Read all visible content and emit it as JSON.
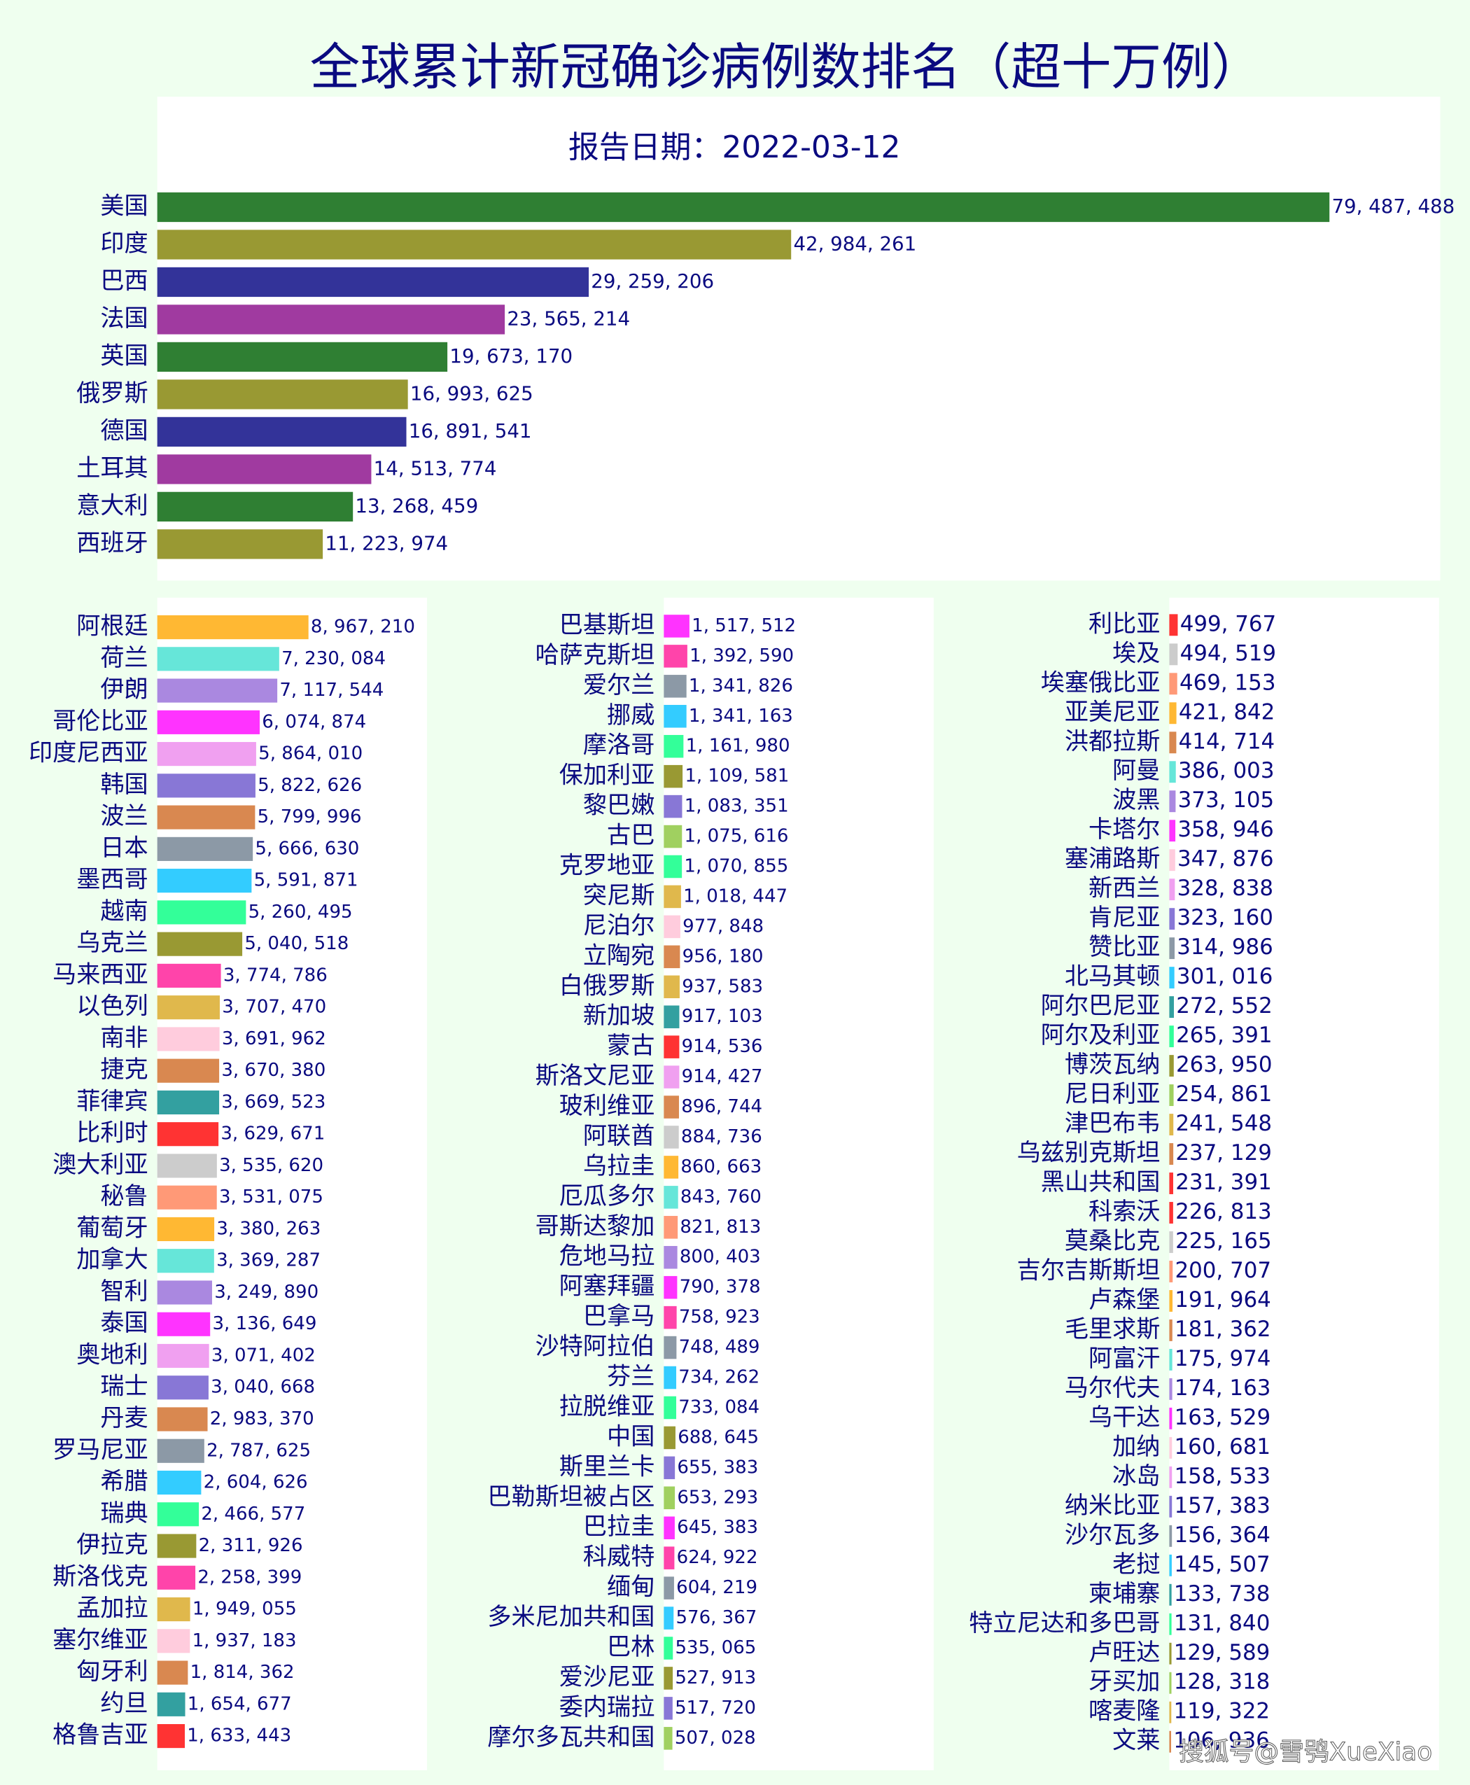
{
  "chart_data": [
    {
      "type": "bar",
      "orientation": "horizontal",
      "title": "全球累计新冠确诊病例数排名（超十万例）",
      "subtitle": "报告日期：2022-03-12",
      "categories": [
        "美国",
        "印度",
        "巴西",
        "法国",
        "英国",
        "俄罗斯",
        "德国",
        "土耳其",
        "意大利",
        "西班牙"
      ],
      "values": [
        79487488,
        42984261,
        29259206,
        23565214,
        19673170,
        16993625,
        16891541,
        14513774,
        13268459,
        11223974
      ],
      "value_labels": [
        "79, 487, 488",
        "42, 984, 261",
        "29, 259, 206",
        "23, 565, 214",
        "19, 673, 170",
        "16, 993, 625",
        "16, 891, 541",
        "14, 513, 774",
        "13, 268, 459",
        "11, 223, 974"
      ],
      "colors": [
        "#2f7f33",
        "#999933",
        "#333399",
        "#a03aa0"
      ],
      "xlim": [
        0,
        87000000
      ]
    },
    {
      "type": "bar",
      "orientation": "horizontal",
      "categories": [
        "阿根廷",
        "荷兰",
        "伊朗",
        "哥伦比亚",
        "印度尼西亚",
        "韩国",
        "波兰",
        "日本",
        "墨西哥",
        "越南",
        "乌克兰",
        "马来西亚",
        "以色列",
        "南非",
        "捷克",
        "菲律宾",
        "比利时",
        "澳大利亚",
        "秘鲁",
        "葡萄牙",
        "加拿大",
        "智利",
        "泰国",
        "奥地利",
        "瑞士",
        "丹麦",
        "罗马尼亚",
        "希腊",
        "瑞典",
        "伊拉克",
        "斯洛伐克",
        "孟加拉",
        "塞尔维亚",
        "匈牙利",
        "约旦",
        "格鲁吉亚"
      ],
      "values": [
        8967210,
        7230084,
        7117544,
        6074874,
        5864010,
        5822626,
        5799996,
        5666630,
        5591871,
        5260495,
        5040518,
        3774786,
        3707470,
        3691962,
        3670380,
        3669523,
        3629671,
        3535620,
        3531075,
        3380263,
        3369287,
        3249890,
        3136649,
        3071402,
        3040668,
        2983370,
        2787625,
        2604626,
        2466577,
        2311926,
        2258399,
        1949055,
        1937183,
        1814362,
        1654677,
        1633443
      ],
      "value_labels": [
        "8, 967, 210",
        "7, 230, 084",
        "7, 117, 544",
        "6, 074, 874",
        "5, 864, 010",
        "5, 822, 626",
        "5, 799, 996",
        "5, 666, 630",
        "5, 591, 871",
        "5, 260, 495",
        "5, 040, 518",
        "3, 774, 786",
        "3, 707, 470",
        "3, 691, 962",
        "3, 670, 380",
        "3, 669, 523",
        "3, 629, 671",
        "3, 535, 620",
        "3, 531, 075",
        "3, 380, 263",
        "3, 369, 287",
        "3, 249, 890",
        "3, 136, 649",
        "3, 071, 402",
        "3, 040, 668",
        "2, 983, 370",
        "2, 787, 625",
        "2, 604, 626",
        "2, 466, 577",
        "2, 311, 926",
        "2, 258, 399",
        "1, 949, 055",
        "1, 937, 183",
        "1, 814, 362",
        "1, 654, 677",
        "1, 633, 443"
      ],
      "colors": [
        "#ffb833",
        "#66e6d9",
        "#aa88e0",
        "#ff33ff",
        "#f0a0f0",
        "#8877d6",
        "#d98850",
        "#8c99a6",
        "#33ccff",
        "#33ff99",
        "#999933",
        "#ff44aa",
        "#e0b84c",
        "#ffccdd",
        "#d98850",
        "#33a0a0",
        "#ff3333",
        "#cccccc",
        "#ff9977"
      ],
      "xlim": [
        0,
        16000000
      ]
    },
    {
      "type": "bar",
      "orientation": "horizontal",
      "categories": [
        "巴基斯坦",
        "哈萨克斯坦",
        "爱尔兰",
        "挪威",
        "摩洛哥",
        "保加利亚",
        "黎巴嫩",
        "古巴",
        "克罗地亚",
        "突尼斯",
        "尼泊尔",
        "立陶宛",
        "白俄罗斯",
        "新加坡",
        "蒙古",
        "斯洛文尼亚",
        "玻利维亚",
        "阿联酋",
        "乌拉圭",
        "厄瓜多尔",
        "哥斯达黎加",
        "危地马拉",
        "阿塞拜疆",
        "巴拿马",
        "沙特阿拉伯",
        "芬兰",
        "拉脱维亚",
        "中国",
        "斯里兰卡",
        "巴勒斯坦被占区",
        "巴拉圭",
        "科威特",
        "缅甸",
        "多米尼加共和国",
        "巴林",
        "爱沙尼亚",
        "委内瑞拉",
        "摩尔多瓦共和国"
      ],
      "values": [
        1517512,
        1392590,
        1341826,
        1341163,
        1161980,
        1109581,
        1083351,
        1075616,
        1070855,
        1018447,
        977848,
        956180,
        937583,
        917103,
        914536,
        914427,
        896744,
        884736,
        860663,
        843760,
        821813,
        800403,
        790378,
        758923,
        748489,
        734262,
        733084,
        688645,
        655383,
        653293,
        645383,
        624922,
        604219,
        576367,
        535065,
        527913,
        517720,
        507028
      ],
      "value_labels": [
        "1, 517, 512",
        "1, 392, 590",
        "1, 341, 826",
        "1, 341, 163",
        "1, 161, 980",
        "1, 109, 581",
        "1, 083, 351",
        "1, 075, 616",
        "1, 070, 855",
        "1, 018, 447",
        "977, 848",
        "956, 180",
        "937, 583",
        "917, 103",
        "914, 536",
        "914, 427",
        "896, 744",
        "884, 736",
        "860, 663",
        "843, 760",
        "821, 813",
        "800, 403",
        "790, 378",
        "758, 923",
        "748, 489",
        "734, 262",
        "733, 084",
        "688, 645",
        "655, 383",
        "653, 293",
        "645, 383",
        "624, 922",
        "604, 219",
        "576, 367",
        "535, 065",
        "527, 913",
        "517, 720",
        "507, 028"
      ],
      "colors": [
        "#ff33ff",
        "#ff44aa",
        "#8c99a6",
        "#33ccff",
        "#33ff99",
        "#999933",
        "#8877d6",
        "#a0d060",
        "#33ff99",
        "#e0b84c",
        "#ffccdd",
        "#d98850",
        "#e0b84c",
        "#33a0a0",
        "#ff3333",
        "#f0a0f0",
        "#d98850",
        "#cccccc",
        "#ffb833",
        "#66e6d9",
        "#ff9977",
        "#aa88e0",
        "#ff33ff",
        "#ff44aa",
        "#8c99a6",
        "#33ccff",
        "#33ff99",
        "#999933",
        "#8877d6",
        "#a0d060"
      ],
      "xlim": [
        0,
        16000000
      ]
    },
    {
      "type": "bar",
      "orientation": "horizontal",
      "categories": [
        "利比亚",
        "埃及",
        "埃塞俄比亚",
        "亚美尼亚",
        "洪都拉斯",
        "阿曼",
        "波黑",
        "卡塔尔",
        "塞浦路斯",
        "新西兰",
        "肯尼亚",
        "赞比亚",
        "北马其顿",
        "阿尔巴尼亚",
        "阿尔及利亚",
        "博茨瓦纳",
        "尼日利亚",
        "津巴布韦",
        "乌兹别克斯坦",
        "黑山共和国",
        "科索沃",
        "莫桑比克",
        "吉尔吉斯斯坦",
        "卢森堡",
        "毛里求斯",
        "阿富汗",
        "马尔代夫",
        "乌干达",
        "加纳",
        "冰岛",
        "纳米比亚",
        "沙尔瓦多",
        "老挝",
        "柬埔寨",
        "特立尼达和多巴哥",
        "卢旺达",
        "牙买加",
        "喀麦隆",
        "文莱"
      ],
      "values": [
        499767,
        494519,
        469153,
        421842,
        414714,
        386003,
        373105,
        358946,
        347876,
        328838,
        323160,
        314986,
        301016,
        272552,
        265391,
        263950,
        254861,
        241548,
        237129,
        231391,
        226813,
        225165,
        200707,
        191964,
        181362,
        175974,
        174163,
        163529,
        160681,
        158533,
        157383,
        156364,
        145507,
        133738,
        131840,
        129589,
        128318,
        119322,
        106936
      ],
      "value_labels": [
        "499, 767",
        "494, 519",
        "469, 153",
        "421, 842",
        "414, 714",
        "386, 003",
        "373, 105",
        "358, 946",
        "347, 876",
        "328, 838",
        "323, 160",
        "314, 986",
        "301, 016",
        "272, 552",
        "265, 391",
        "263, 950",
        "254, 861",
        "241, 548",
        "237, 129",
        "231, 391",
        "226, 813",
        "225, 165",
        "200, 707",
        "191, 964",
        "181, 362",
        "175, 974",
        "174, 163",
        "163, 529",
        "160, 681",
        "158, 533",
        "157, 383",
        "156, 364",
        "145, 507",
        "133, 738",
        "131, 840",
        "129, 589",
        "128, 318",
        "119, 322",
        "106, 936"
      ],
      "colors": [
        "#ff3333",
        "#cccccc",
        "#ff9977",
        "#ffb833",
        "#d98850",
        "#66e6d9",
        "#aa88e0",
        "#ff33ff",
        "#ffccdd",
        "#f0a0f0",
        "#8877d6",
        "#8c99a6",
        "#33ccff",
        "#33a0a0",
        "#33ff99",
        "#999933",
        "#a0d060",
        "#e0b84c",
        "#d98850",
        "#ff3333"
      ],
      "xlim": [
        0,
        16000000
      ]
    }
  ],
  "watermark": "搜狐号@雪鸮XueXiao"
}
